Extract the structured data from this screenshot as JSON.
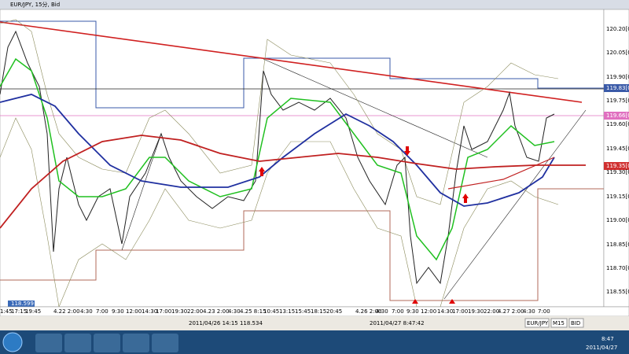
{
  "header": {
    "title": "EUR/JPY, 15分, Bid"
  },
  "y_axis": {
    "labels": [
      "120.20[0]",
      "120.05[0]",
      "119.90[0]",
      "119.83[0]",
      "119.75[0]",
      "119.66[0]",
      "119.60[0]",
      "119.45[0]",
      "119.35[0]",
      "119.30[0]",
      "119.15[0]",
      "119.00[0]",
      "118.85[0]",
      "118.70[0]",
      "118.55[0]"
    ]
  },
  "x_axis": {
    "labels": [
      "1:45",
      "17:15",
      "19:45",
      "4.22 2:00",
      "4:30",
      "7:00",
      "9:30",
      "12:00",
      "14:30",
      "17:00",
      "19:30",
      "22:00",
      "4.23 2:00",
      "4:30",
      "4.25 8:15",
      "10:45",
      "13:15",
      "15:45",
      "18:15",
      "20:45",
      "4.26 2:00",
      "4:30",
      "7:00",
      "9:30",
      "12:00",
      "14:30",
      "17:00",
      "19:30",
      "22:00",
      "4.27 2:00",
      "4:30",
      "7:00"
    ]
  },
  "left_marker": "118.599",
  "toolbar": {
    "symbol": "EUR/JPY",
    "timeframe": "M15",
    "price_type": "BID"
  },
  "status": {
    "cursor": "2011/04/26 14:15 118.534",
    "server_time": "2011/04/27 8:47:42"
  },
  "taskbar": {
    "time": "8:47",
    "date": "2011/04/27"
  }
}
